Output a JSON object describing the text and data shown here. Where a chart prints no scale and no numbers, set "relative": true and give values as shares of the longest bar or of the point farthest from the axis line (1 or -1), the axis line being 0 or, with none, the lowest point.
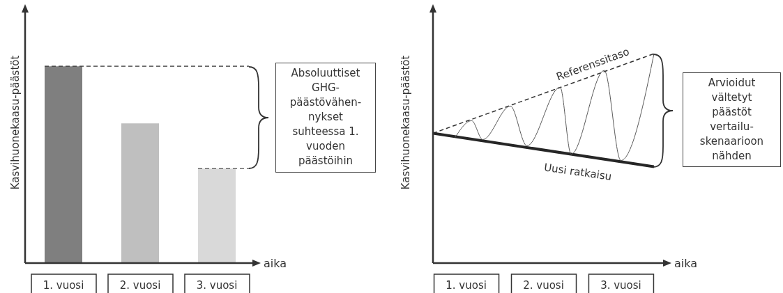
{
  "chart_data": [
    {
      "type": "bar",
      "relative": true,
      "ylabel": "Kasvihuonekaasu-päästöt",
      "xlabel": "aika",
      "categories": [
        "1. vuosi",
        "2. vuosi",
        "3. vuosi"
      ],
      "values": [
        1,
        0.71,
        0.48
      ],
      "colors": [
        "#7f7f7f",
        "#bfbfbf",
        "#d9d9d9"
      ],
      "ref_lines": [
        {
          "axis": "y",
          "value": 1,
          "line_style": "dashed",
          "color": "#333333"
        },
        {
          "axis": "y",
          "value": 0.48,
          "line_style": "dashed",
          "color": "#333333"
        }
      ],
      "annotations": [
        "Absoluuttiset GHG-päästövähen-nykset suhteessa 1. vuoden päästöihin"
      ]
    },
    {
      "type": "line",
      "relative": true,
      "marker": "none",
      "ylabel": "Kasvihuonekaasu-päästöt",
      "xlabel": "aika",
      "categories": [
        null,
        null,
        null,
        null,
        null,
        null,
        "1. vuosi",
        null,
        null,
        null,
        null,
        null,
        null,
        null,
        null,
        null,
        null,
        null,
        null,
        null,
        "2. vuosi",
        null,
        null,
        null,
        null,
        null,
        null,
        null,
        null,
        null,
        null,
        null,
        null,
        null,
        "3. vuosi",
        null,
        null,
        null,
        null,
        null,
        null
      ],
      "series": [
        {
          "name": "Referenssitaso",
          "color": "#333333",
          "line_style": "dashed",
          "values": [
            0.62,
            null,
            null,
            null,
            null,
            null,
            null,
            null,
            null,
            null,
            null,
            null,
            null,
            null,
            null,
            null,
            null,
            null,
            null,
            null,
            null,
            null,
            null,
            null,
            null,
            null,
            null,
            null,
            null,
            null,
            null,
            null,
            null,
            null,
            null,
            null,
            null,
            null,
            null,
            null,
            1
          ]
        },
        {
          "name": "Uusi ratkaisu",
          "color": "#262626",
          "values": [
            0.62,
            null,
            null,
            null,
            null,
            null,
            null,
            null,
            null,
            null,
            null,
            null,
            null,
            null,
            null,
            null,
            null,
            null,
            null,
            null,
            null,
            null,
            null,
            null,
            null,
            null,
            null,
            null,
            null,
            null,
            null,
            null,
            null,
            null,
            null,
            null,
            null,
            null,
            null,
            null,
            0.46
          ]
        },
        {
          "color": "#595959",
          "values": [
            null,
            null,
            null,
            null,
            0.6,
            null,
            null,
            0.68,
            null,
            0.59,
            null,
            null,
            null,
            null,
            0.75,
            null,
            null,
            0.56,
            null,
            null,
            null,
            null,
            null,
            0.84,
            null,
            0.52,
            null,
            null,
            null,
            null,
            null,
            0.92,
            null,
            null,
            0.49,
            null,
            null,
            null,
            null,
            null,
            1
          ]
        }
      ],
      "annotations": [
        "Arvioidut vältetyt päästöt vertailu-skenaarioon nähden"
      ]
    }
  ]
}
